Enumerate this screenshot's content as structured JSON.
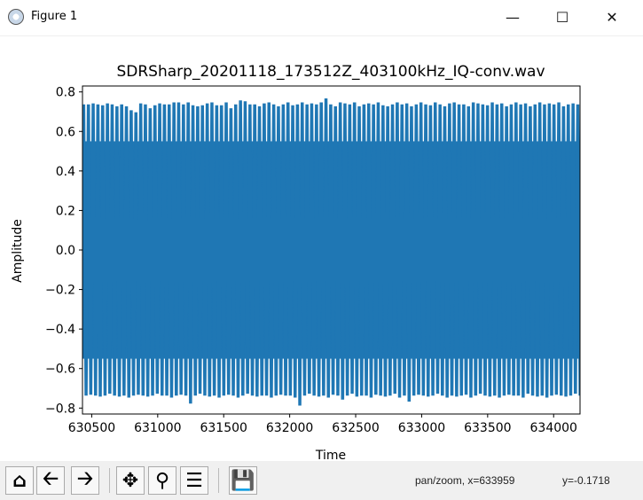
{
  "window": {
    "title": "Figure 1",
    "minimize_icon": "minimize-icon",
    "maximize_icon": "maximize-icon",
    "close_icon": "close-icon"
  },
  "toolbar": {
    "buttons": [
      "home",
      "back",
      "forward",
      "pan",
      "zoom",
      "configure-subplots",
      "save"
    ],
    "status_mode": "pan/zoom, x=633959",
    "status_y": "y=-0.1718"
  },
  "chart_data": {
    "type": "line",
    "title": "SDRSharp_20201118_173512Z_403100kHz_IQ-conv.wav",
    "xlabel": "Time",
    "ylabel": "Amplitude",
    "xlim": [
      630430,
      634200
    ],
    "ylim": [
      -0.83,
      0.83
    ],
    "xticks": [
      630500,
      631000,
      631500,
      632000,
      632500,
      633000,
      633500,
      634000
    ],
    "xtick_labels": [
      "630500",
      "631000",
      "631500",
      "632000",
      "632500",
      "633000",
      "633500",
      "634000"
    ],
    "yticks": [
      -0.8,
      -0.6,
      -0.4,
      -0.2,
      0.0,
      0.2,
      0.4,
      0.6,
      0.8
    ],
    "ytick_labels": [
      "−0.8",
      "−0.6",
      "−0.4",
      "−0.2",
      "0.0",
      "0.2",
      "0.4",
      "0.6",
      "0.8"
    ],
    "color": "#1f77b4",
    "grid": false,
    "series": [
      {
        "period": 36,
        "peaks": [
          0.73,
          0.73,
          0.735,
          0.73,
          0.725,
          0.735,
          0.73,
          0.72,
          0.73,
          0.72,
          0.7,
          0.69,
          0.735,
          0.73,
          0.71,
          0.725,
          0.735,
          0.73,
          0.73,
          0.74,
          0.74,
          0.73,
          0.74,
          0.725,
          0.72,
          0.725,
          0.735,
          0.74,
          0.725,
          0.725,
          0.74,
          0.71,
          0.73,
          0.75,
          0.745,
          0.73,
          0.73,
          0.72,
          0.735,
          0.74,
          0.73,
          0.72,
          0.73,
          0.74,
          0.725,
          0.73,
          0.74,
          0.73,
          0.735,
          0.73,
          0.74,
          0.76,
          0.73,
          0.72,
          0.74,
          0.735,
          0.73,
          0.74,
          0.72,
          0.73,
          0.735,
          0.73,
          0.74,
          0.725,
          0.72,
          0.73,
          0.74,
          0.73,
          0.735,
          0.72,
          0.73,
          0.74,
          0.73,
          0.725,
          0.74,
          0.73,
          0.72,
          0.735,
          0.74,
          0.73,
          0.73,
          0.72,
          0.74,
          0.735,
          0.73,
          0.725,
          0.74,
          0.73,
          0.735,
          0.72,
          0.73,
          0.74,
          0.73,
          0.735,
          0.72,
          0.73,
          0.74,
          0.73,
          0.735,
          0.73,
          0.74,
          0.72,
          0.73,
          0.735,
          0.73
        ],
        "troughs": [
          -0.73,
          -0.725,
          -0.73,
          -0.735,
          -0.73,
          -0.72,
          -0.73,
          -0.735,
          -0.73,
          -0.74,
          -0.73,
          -0.725,
          -0.73,
          -0.735,
          -0.73,
          -0.72,
          -0.73,
          -0.73,
          -0.74,
          -0.73,
          -0.725,
          -0.73,
          -0.77,
          -0.73,
          -0.72,
          -0.73,
          -0.735,
          -0.73,
          -0.74,
          -0.73,
          -0.725,
          -0.73,
          -0.74,
          -0.73,
          -0.72,
          -0.73,
          -0.735,
          -0.73,
          -0.73,
          -0.74,
          -0.73,
          -0.725,
          -0.73,
          -0.73,
          -0.74,
          -0.78,
          -0.73,
          -0.72,
          -0.73,
          -0.735,
          -0.73,
          -0.74,
          -0.725,
          -0.73,
          -0.75,
          -0.73,
          -0.72,
          -0.735,
          -0.73,
          -0.73,
          -0.74,
          -0.725,
          -0.73,
          -0.735,
          -0.73,
          -0.72,
          -0.74,
          -0.73,
          -0.76,
          -0.73,
          -0.725,
          -0.73,
          -0.735,
          -0.73,
          -0.72,
          -0.73,
          -0.74,
          -0.73,
          -0.735,
          -0.73,
          -0.725,
          -0.74,
          -0.73,
          -0.72,
          -0.73,
          -0.735,
          -0.73,
          -0.74,
          -0.73,
          -0.725,
          -0.73,
          -0.73,
          -0.74,
          -0.72,
          -0.73,
          -0.735,
          -0.73,
          -0.74,
          -0.73,
          -0.725,
          -0.73,
          -0.735,
          -0.73,
          -0.72,
          -0.73
        ]
      }
    ]
  }
}
